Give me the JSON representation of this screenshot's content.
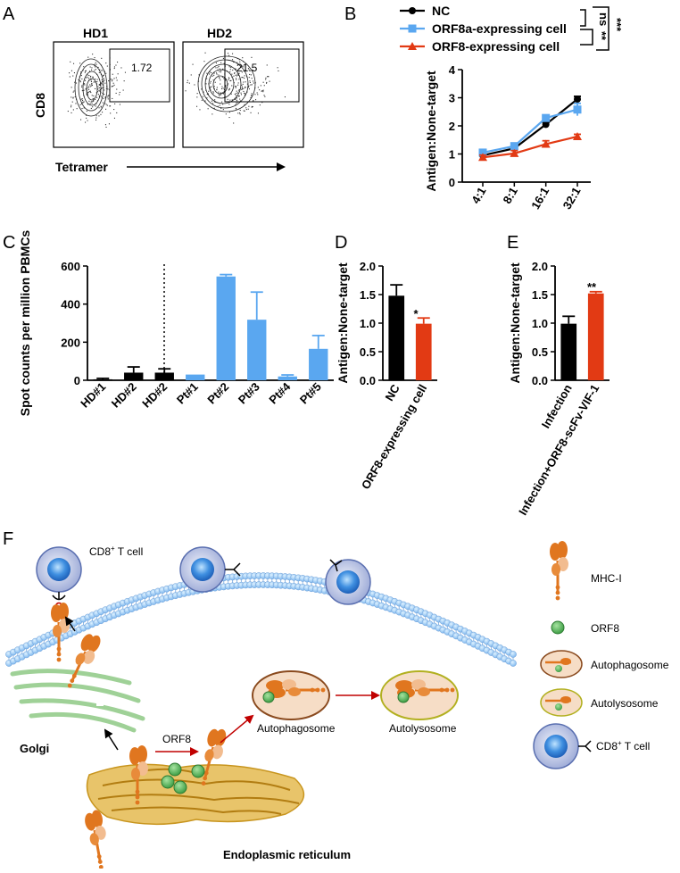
{
  "panels": {
    "A": "A",
    "B": "B",
    "C": "C",
    "D": "D",
    "E": "E",
    "F": "F"
  },
  "panel_a": {
    "plots": [
      {
        "title": "HD1",
        "gate_value": "1.72"
      },
      {
        "title": "HD2",
        "gate_value": "21.5"
      }
    ],
    "ylabel": "CD8",
    "xlabel": "Tetramer"
  },
  "significance": {
    "b_ns": "ns",
    "b_double": "**",
    "b_triple": "***",
    "d": "*",
    "e": "**"
  },
  "chart_data": [
    {
      "id": "B",
      "type": "line",
      "categories": [
        "4:1",
        "8:1",
        "16:1",
        "32:1"
      ],
      "series": [
        {
          "name": "NC",
          "values": [
            0.95,
            1.2,
            2.05,
            2.95
          ],
          "errors": [
            0.05,
            0.05,
            0.07,
            0.1
          ],
          "color": "#000000",
          "marker": "circle"
        },
        {
          "name": "ORF8a-expressing cell",
          "values": [
            1.05,
            1.28,
            2.28,
            2.58
          ],
          "errors": [
            0.07,
            0.06,
            0.1,
            0.22
          ],
          "color": "#5aa7f0",
          "marker": "square"
        },
        {
          "name": "ORF8-expressing cell",
          "values": [
            0.88,
            1.02,
            1.35,
            1.62
          ],
          "errors": [
            0.08,
            0.1,
            0.12,
            0.08
          ],
          "color": "#e23a14",
          "marker": "triangle"
        }
      ],
      "ylabel": "Antigen:None-target",
      "ylim": [
        0,
        4
      ],
      "yticks": [
        "0",
        "1",
        "2",
        "3",
        "4"
      ]
    },
    {
      "id": "C",
      "type": "bar",
      "categories": [
        "HD#1",
        "HD#2",
        "HD#2",
        "Pt#1",
        "Pt#2",
        "Pt#3",
        "Pt#4",
        "Pt#5"
      ],
      "values": [
        5,
        40,
        40,
        30,
        545,
        318,
        20,
        165
      ],
      "errors": [
        5,
        30,
        20,
        0,
        10,
        145,
        8,
        70
      ],
      "colors": [
        "#000000",
        "#000000",
        "#000000",
        "#5aa7f0",
        "#5aa7f0",
        "#5aa7f0",
        "#5aa7f0",
        "#5aa7f0"
      ],
      "ylabel": "Spot counts per million PBMCs",
      "ylim": [
        0,
        600
      ],
      "yticks": [
        "0",
        "200",
        "400",
        "600"
      ]
    },
    {
      "id": "D",
      "type": "bar",
      "categories": [
        "NC",
        "ORF8-expressing cell"
      ],
      "values": [
        1.48,
        0.99
      ],
      "errors": [
        0.19,
        0.1
      ],
      "colors": [
        "#000000",
        "#e23a14"
      ],
      "ylabel": "Antigen:None-target",
      "ylim": [
        0,
        2.0
      ],
      "yticks": [
        "0.0",
        "0.5",
        "1.0",
        "1.5",
        "2.0"
      ]
    },
    {
      "id": "E",
      "type": "bar",
      "categories": [
        "Infection",
        "Infection+ORF8-scFv-VIF-1"
      ],
      "values": [
        0.99,
        1.52
      ],
      "errors": [
        0.13,
        0.03
      ],
      "colors": [
        "#000000",
        "#e23a14"
      ],
      "ylabel": "Antigen:None-target",
      "ylim": [
        0,
        2.0
      ],
      "yticks": [
        "0.0",
        "0.5",
        "1.0",
        "1.5",
        "2.0"
      ]
    }
  ],
  "diagram": {
    "cd8_cell": "CD8",
    "cd8_sup": "+",
    "cd8_rest": " T cell",
    "golgi": "Golgi",
    "orf8": "ORF8",
    "autophagosome": "Autophagosome",
    "autolysosome": "Autolysosome",
    "er": "Endoplasmic reticulum",
    "legend": {
      "mhc": "MHC-I",
      "orf8": "ORF8",
      "autophagosome": "Autophagosome",
      "autolysosome": "Autolysosome",
      "cd8": "CD8",
      "cd8_sup": "+",
      "cd8_rest": " T cell"
    }
  },
  "colors": {
    "blue": "#5aa7f0",
    "red": "#e23a14",
    "black": "#000000",
    "orange": "#e0761f",
    "green": "#5bb85b"
  }
}
